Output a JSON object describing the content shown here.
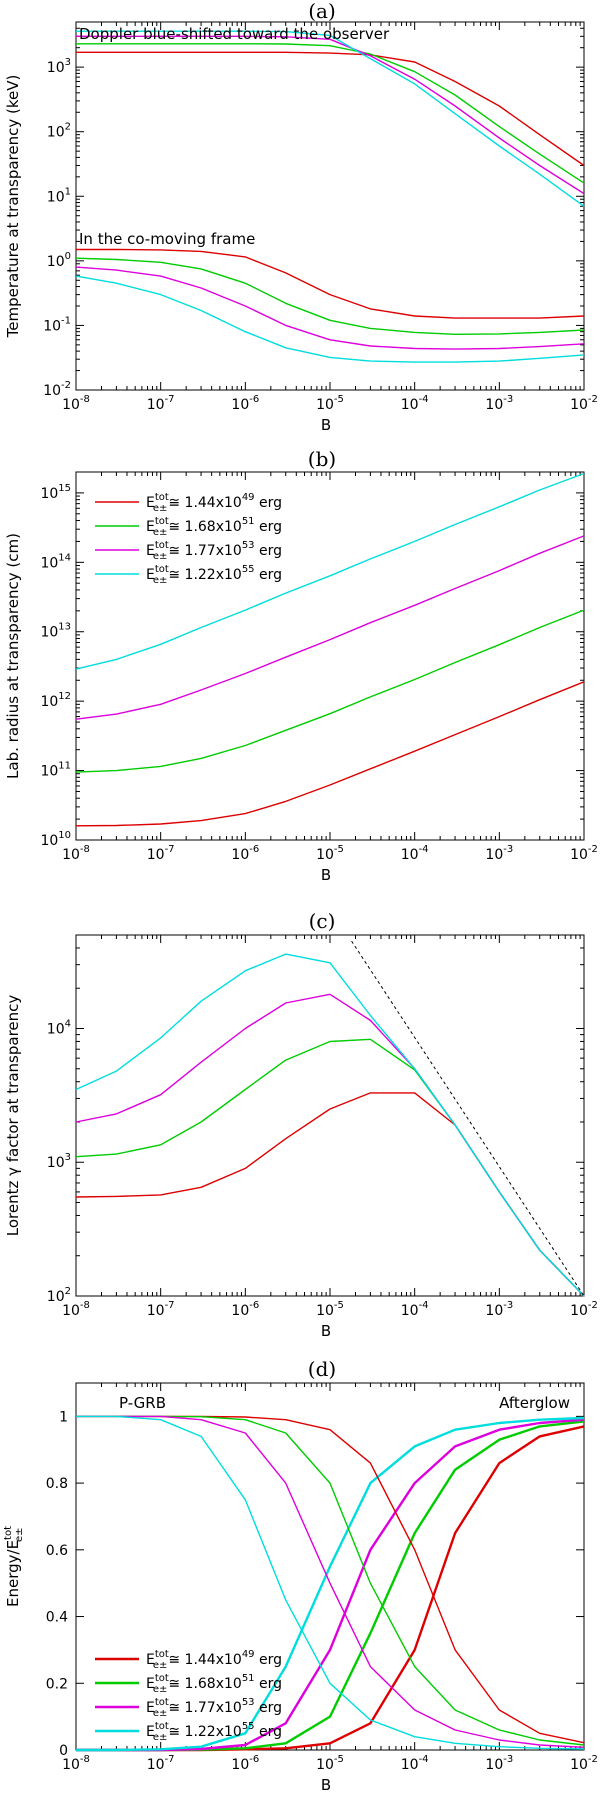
{
  "chart_data": [
    {
      "panel": "(a)",
      "type": "line",
      "title": "(a)",
      "xlabel": "B",
      "ylabel": "Temperature at transparency (keV)",
      "xscale": "log",
      "yscale": "log",
      "xlim": [
        1e-08,
        0.01
      ],
      "ylim": [
        0.01,
        5000
      ],
      "xticks": [
        "10-8",
        "10-7",
        "10-6",
        "10-5",
        "10-4",
        "10-3",
        "10-2"
      ],
      "yticks": [
        "10-2",
        "10-1",
        "100",
        "101",
        "102",
        "103"
      ],
      "annotations": [
        "Doppler blue-shifted toward the observer",
        "In the co-moving frame"
      ],
      "x": [
        1e-08,
        3e-08,
        1e-07,
        3e-07,
        1e-06,
        3e-06,
        1e-05,
        3e-05,
        0.0001,
        0.0003,
        0.001,
        0.003,
        0.01
      ],
      "series": [
        {
          "name": "observer 1.44x10^49",
          "color": "red",
          "values": [
            1700,
            1700,
            1700,
            1700,
            1700,
            1700,
            1650,
            1550,
            1200,
            600,
            250,
            90,
            30
          ]
        },
        {
          "name": "observer 1.68x10^51",
          "color": "green",
          "values": [
            2300,
            2300,
            2300,
            2300,
            2300,
            2280,
            2150,
            1600,
            850,
            370,
            120,
            45,
            16
          ]
        },
        {
          "name": "observer 1.77x10^53",
          "color": "magenta",
          "values": [
            3000,
            3000,
            3000,
            3000,
            3000,
            2950,
            2700,
            1500,
            650,
            250,
            80,
            30,
            11
          ]
        },
        {
          "name": "observer 1.22x10^55",
          "color": "cyan",
          "values": [
            3600,
            3600,
            3600,
            3600,
            3600,
            3550,
            3100,
            1350,
            550,
            190,
            60,
            22,
            7
          ]
        },
        {
          "name": "comoving 1.44x10^49",
          "color": "red",
          "values": [
            1.5,
            1.5,
            1.48,
            1.4,
            1.15,
            0.65,
            0.3,
            0.18,
            0.14,
            0.13,
            0.13,
            0.13,
            0.14
          ]
        },
        {
          "name": "comoving 1.68x10^51",
          "color": "green",
          "values": [
            1.1,
            1.05,
            0.95,
            0.75,
            0.45,
            0.22,
            0.12,
            0.09,
            0.078,
            0.073,
            0.074,
            0.078,
            0.085
          ]
        },
        {
          "name": "comoving 1.77x10^53",
          "color": "magenta",
          "values": [
            0.8,
            0.72,
            0.58,
            0.38,
            0.2,
            0.1,
            0.06,
            0.048,
            0.044,
            0.043,
            0.044,
            0.047,
            0.052
          ]
        },
        {
          "name": "comoving 1.22x10^55",
          "color": "cyan",
          "values": [
            0.58,
            0.45,
            0.3,
            0.17,
            0.08,
            0.045,
            0.032,
            0.028,
            0.027,
            0.027,
            0.028,
            0.031,
            0.035
          ]
        }
      ]
    },
    {
      "panel": "(b)",
      "type": "line",
      "title": "(b)",
      "xlabel": "B",
      "ylabel": "Lab. radius at transparency (cm)",
      "xscale": "log",
      "yscale": "log",
      "xlim": [
        1e-08,
        0.01
      ],
      "ylim": [
        10000000000.0,
        2000000000000000.0
      ],
      "xticks": [
        "10-8",
        "10-7",
        "10-6",
        "10-5",
        "10-4",
        "10-3",
        "10-2"
      ],
      "yticks": [
        "1010",
        "1011",
        "1012",
        "1013",
        "1014",
        "1015"
      ],
      "legend": [
        {
          "label": "1.44x10",
          "exp": "49",
          "color": "red"
        },
        {
          "label": "1.68x10",
          "exp": "51",
          "color": "green"
        },
        {
          "label": "1.77x10",
          "exp": "53",
          "color": "magenta"
        },
        {
          "label": "1.22x10",
          "exp": "55",
          "color": "cyan"
        }
      ],
      "legend_prefix": "E",
      "legend_sub": "e±",
      "legend_sup": "tot",
      "legend_rel": "≅",
      "legend_unit": "erg",
      "x": [
        1e-08,
        3e-08,
        1e-07,
        3e-07,
        1e-06,
        3e-06,
        1e-05,
        3e-05,
        0.0001,
        0.0003,
        0.001,
        0.003,
        0.01
      ],
      "series": [
        {
          "name": "1.44x10^49",
          "color": "red",
          "values": [
            16000000000.0,
            16200000000.0,
            17000000000.0,
            19000000000.0,
            24000000000.0,
            36000000000.0,
            62000000000.0,
            106000000000.0,
            190000000000.0,
            330000000000.0,
            600000000000.0,
            1050000000000.0,
            1900000000000.0
          ]
        },
        {
          "name": "1.68x10^51",
          "color": "green",
          "values": [
            95000000000.0,
            100000000000.0,
            115000000000.0,
            150000000000.0,
            230000000000.0,
            380000000000.0,
            660000000000.0,
            1150000000000.0,
            2050000000000.0,
            3600000000000.0,
            6500000000000.0,
            11500000000000.0,
            20500000000000.0
          ]
        },
        {
          "name": "1.77x10^53",
          "color": "magenta",
          "values": [
            550000000000.0,
            650000000000.0,
            900000000000.0,
            1450000000000.0,
            2500000000000.0,
            4300000000000.0,
            7700000000000.0,
            13500000000000.0,
            24000000000000.0,
            42000000000000.0,
            76000000000000.0,
            135000000000000.0,
            240000000000000.0
          ]
        },
        {
          "name": "1.22x10^55",
          "color": "cyan",
          "values": [
            2900000000000.0,
            4000000000000.0,
            6600000000000.0,
            11500000000000.0,
            20500000000000.0,
            36000000000000.0,
            64000000000000.0,
            112000000000000.0,
            200000000000000.0,
            350000000000000.0,
            630000000000000.0,
            1100000000000000.0,
            1900000000000000.0
          ]
        }
      ]
    },
    {
      "panel": "(c)",
      "type": "line",
      "title": "(c)",
      "xlabel": "B",
      "ylabel": "Lorentz γ factor at transparency",
      "xscale": "log",
      "yscale": "log",
      "xlim": [
        1e-08,
        0.01
      ],
      "ylim": [
        100,
        50000
      ],
      "xticks": [
        "10-8",
        "10-7",
        "10-6",
        "10-5",
        "10-4",
        "10-3",
        "10-2"
      ],
      "yticks": [
        "102",
        "103",
        "104"
      ],
      "x": [
        1e-08,
        3e-08,
        1e-07,
        3e-07,
        1e-06,
        3e-06,
        1e-05,
        3e-05,
        0.0001,
        0.0003,
        0.001,
        0.003,
        0.01
      ],
      "series": [
        {
          "name": "1.44x10^49",
          "color": "red",
          "values": [
            550,
            555,
            570,
            650,
            900,
            1500,
            2500,
            3300,
            3300,
            1900,
            600,
            220,
            100
          ]
        },
        {
          "name": "1.68x10^51",
          "color": "green",
          "values": [
            1100,
            1150,
            1350,
            2000,
            3500,
            5800,
            8000,
            8300,
            4900,
            1900,
            600,
            220,
            100
          ]
        },
        {
          "name": "1.77x10^53",
          "color": "magenta",
          "values": [
            2000,
            2300,
            3200,
            5600,
            10000,
            15500,
            18000,
            11500,
            5000,
            1900,
            600,
            220,
            100
          ]
        },
        {
          "name": "1.22x10^55",
          "color": "cyan",
          "values": [
            3500,
            4800,
            8500,
            16000,
            27000,
            36000,
            31000,
            12500,
            5000,
            1900,
            600,
            220,
            100
          ]
        },
        {
          "name": "asymptote",
          "color": "black",
          "dashed": true,
          "x": [
            1.8e-05,
            0.01
          ],
          "values": [
            45000,
            100
          ]
        }
      ]
    },
    {
      "panel": "(d)",
      "type": "line",
      "title": "(d)",
      "xlabel": "B",
      "ylabel": "Energy/E",
      "ylabel_sub": "e±",
      "ylabel_sup": "tot",
      "xscale": "log",
      "yscale": "linear",
      "xlim": [
        1e-08,
        0.01
      ],
      "ylim": [
        0,
        1.1
      ],
      "xticks": [
        "10-8",
        "10-7",
        "10-6",
        "10-5",
        "10-4",
        "10-3",
        "10-2"
      ],
      "yticks": [
        "0",
        "0.2",
        "0.4",
        "0.6",
        "0.8",
        "1"
      ],
      "annotations": [
        "P-GRB",
        "Afterglow"
      ],
      "legend": [
        {
          "label": "1.44x10",
          "exp": "49",
          "color": "red"
        },
        {
          "label": "1.68x10",
          "exp": "51",
          "color": "green"
        },
        {
          "label": "1.77x10",
          "exp": "53",
          "color": "magenta"
        },
        {
          "label": "1.22x10",
          "exp": "55",
          "color": "cyan"
        }
      ],
      "legend_prefix": "E",
      "legend_sub": "e±",
      "legend_sup": "tot",
      "legend_rel": "≅",
      "legend_unit": "erg",
      "x": [
        1e-08,
        3e-08,
        1e-07,
        3e-07,
        1e-06,
        3e-06,
        1e-05,
        3e-05,
        0.0001,
        0.0003,
        0.001,
        0.003,
        0.01
      ],
      "series": [
        {
          "name": "afterglow 1.44x10^49",
          "color": "red",
          "values": [
            0,
            0,
            0,
            0,
            0.002,
            0.005,
            0.02,
            0.08,
            0.3,
            0.65,
            0.86,
            0.94,
            0.97
          ]
        },
        {
          "name": "afterglow 1.68x10^51",
          "color": "green",
          "values": [
            0,
            0,
            0,
            0.001,
            0.005,
            0.02,
            0.1,
            0.35,
            0.65,
            0.84,
            0.93,
            0.97,
            0.985
          ]
        },
        {
          "name": "afterglow 1.77x10^53",
          "color": "magenta",
          "values": [
            0,
            0,
            0,
            0.003,
            0.015,
            0.08,
            0.3,
            0.6,
            0.8,
            0.91,
            0.96,
            0.98,
            0.99
          ]
        },
        {
          "name": "afterglow 1.22x10^55",
          "color": "cyan",
          "values": [
            0,
            0,
            0.002,
            0.01,
            0.05,
            0.25,
            0.55,
            0.8,
            0.91,
            0.96,
            0.98,
            0.99,
            0.995
          ]
        },
        {
          "name": "P-GRB 1.44x10^49",
          "color": "red",
          "values": [
            1,
            1,
            1,
            1,
            0.998,
            0.99,
            0.96,
            0.86,
            0.6,
            0.3,
            0.12,
            0.05,
            0.022
          ]
        },
        {
          "name": "P-GRB 1.68x10^51",
          "color": "green",
          "values": [
            1,
            1,
            1,
            0.999,
            0.99,
            0.95,
            0.8,
            0.5,
            0.25,
            0.12,
            0.06,
            0.03,
            0.015
          ]
        },
        {
          "name": "P-GRB 1.77x10^53",
          "color": "magenta",
          "values": [
            1,
            1,
            1,
            0.99,
            0.95,
            0.8,
            0.5,
            0.25,
            0.12,
            0.06,
            0.03,
            0.015,
            0.008
          ]
        },
        {
          "name": "P-GRB 1.22x10^55",
          "color": "cyan",
          "values": [
            1,
            1,
            0.99,
            0.94,
            0.75,
            0.45,
            0.2,
            0.09,
            0.04,
            0.02,
            0.01,
            0.005,
            0.003
          ]
        }
      ]
    }
  ]
}
